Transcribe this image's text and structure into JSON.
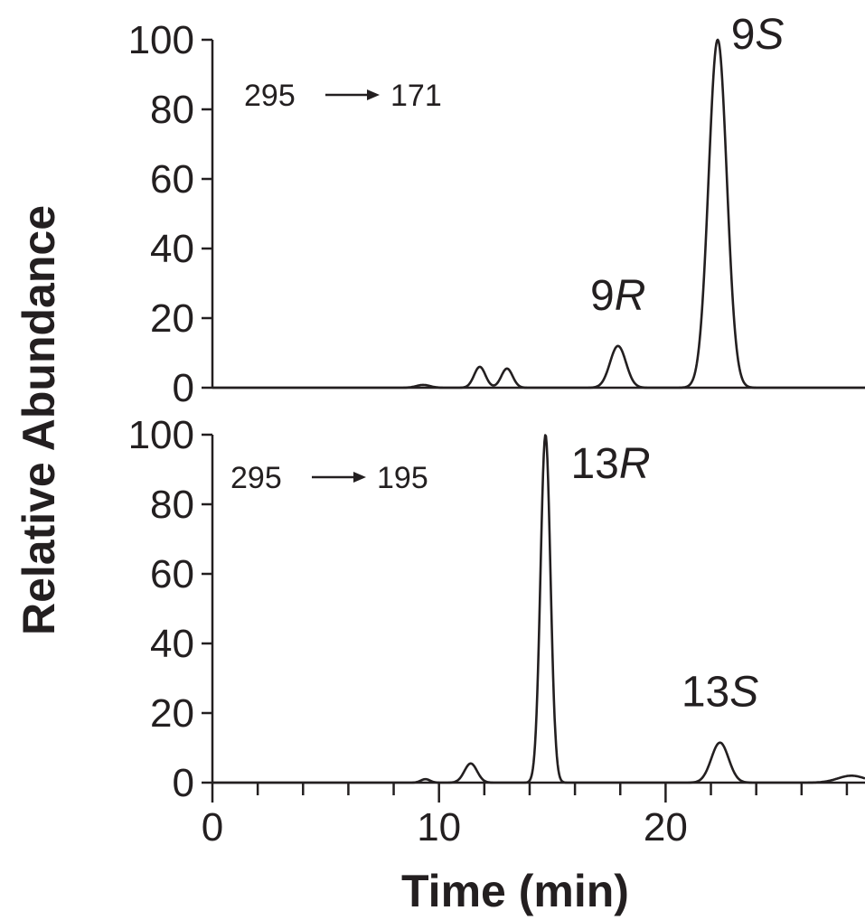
{
  "chart_data": {
    "type": "line",
    "ylabel": "Relative Abundance",
    "xlabel": "Time (min)",
    "xlim": [
      0,
      28.8
    ],
    "x_ticks": [
      0,
      10,
      20
    ],
    "x_minor_step": 2,
    "ylim": [
      0,
      100
    ],
    "y_ticks": [
      0,
      20,
      40,
      60,
      80,
      100
    ],
    "panels": [
      {
        "transition": {
          "from": "295",
          "to": "171"
        },
        "peaks": [
          {
            "x": 9.3,
            "height": 0.8,
            "width": 0.3,
            "label": "",
            "italic": ""
          },
          {
            "x": 11.8,
            "height": 6,
            "width": 0.25,
            "label": "",
            "italic": ""
          },
          {
            "x": 13.0,
            "height": 5.5,
            "width": 0.25,
            "label": "",
            "italic": ""
          },
          {
            "x": 17.9,
            "height": 12,
            "width": 0.35,
            "label": "9",
            "italic": "R"
          },
          {
            "x": 22.3,
            "height": 100,
            "width": 0.4,
            "label": "9",
            "italic": "S"
          }
        ]
      },
      {
        "transition": {
          "from": "295",
          "to": "195"
        },
        "peaks": [
          {
            "x": 9.4,
            "height": 1,
            "width": 0.2,
            "label": "",
            "italic": ""
          },
          {
            "x": 11.4,
            "height": 5.5,
            "width": 0.28,
            "label": "",
            "italic": ""
          },
          {
            "x": 14.7,
            "height": 100,
            "width": 0.22,
            "label": "13",
            "italic": "R"
          },
          {
            "x": 22.4,
            "height": 11.5,
            "width": 0.38,
            "label": "13",
            "italic": "S"
          },
          {
            "x": 28.2,
            "height": 2,
            "width": 0.6,
            "label": "",
            "italic": ""
          }
        ]
      }
    ]
  }
}
